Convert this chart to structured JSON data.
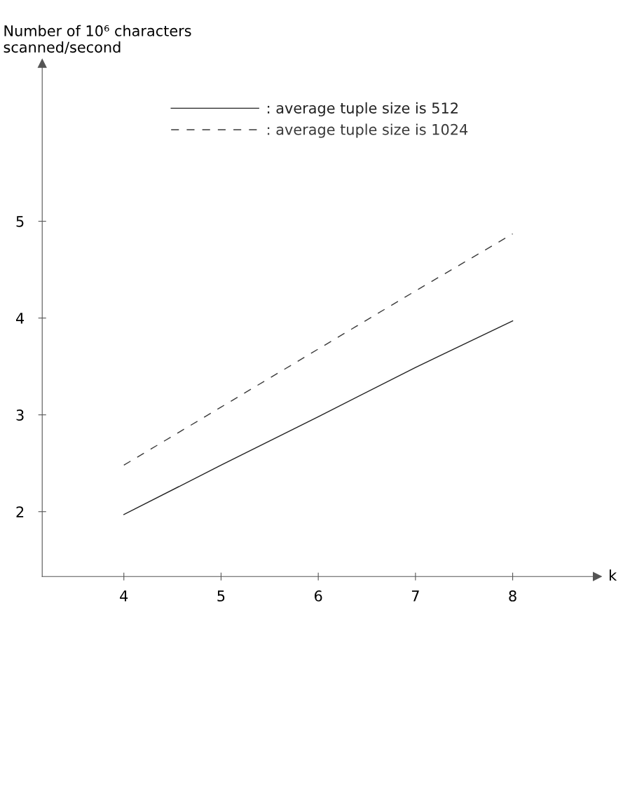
{
  "chart_data": {
    "type": "line",
    "ylabel": "Number of 10⁶ characters\nscanned/second",
    "xlabel": "k",
    "x": [
      4,
      5,
      6,
      7,
      8
    ],
    "series": [
      {
        "name": ": average tuple size is 512",
        "color": "#222222",
        "line_style": "solid",
        "values": [
          1.97,
          2.48,
          2.98,
          3.49,
          3.97
        ]
      },
      {
        "name": ": average tuple size is 1024",
        "color": "#3a3a3a",
        "line_style": "dashed",
        "values": [
          2.48,
          3.08,
          3.68,
          4.28,
          4.87
        ]
      }
    ],
    "xlim": [
      3.16,
      8.87
    ],
    "xticks": [
      4,
      5,
      6,
      7,
      8
    ],
    "ylim": [
      1.33,
      6.63
    ],
    "yticks": [
      2,
      3,
      4,
      5
    ],
    "grid": false,
    "legend": "top",
    "marker": "none"
  }
}
